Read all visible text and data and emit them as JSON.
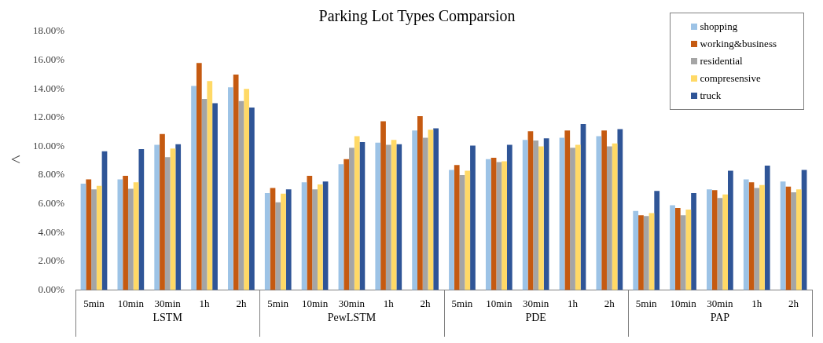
{
  "chart_data": {
    "type": "bar",
    "title": "Parking Lot Types Comparsion",
    "ylabel": "<",
    "categories": [
      "5min",
      "10min",
      "30min",
      "1h",
      "2h",
      "5min",
      "10min",
      "30min",
      "1h",
      "2h",
      "5min",
      "10min",
      "30min",
      "1h",
      "2h",
      "5min",
      "10min",
      "30min",
      "1h",
      "2h"
    ],
    "annotations": [
      "LSTM",
      "PewLSTM",
      "PDE",
      "PAP"
    ],
    "series": [
      {
        "name": "shopping",
        "color": "#9dc3e6",
        "values": [
          7.4,
          7.7,
          10.1,
          14.2,
          14.1,
          6.75,
          7.5,
          8.75,
          10.25,
          11.1,
          8.35,
          9.1,
          10.45,
          10.6,
          10.7,
          5.5,
          5.9,
          7.0,
          7.7,
          7.55
        ]
      },
      {
        "name": "working&business",
        "color": "#c55a11",
        "values": [
          7.7,
          7.95,
          10.85,
          15.8,
          15.0,
          7.1,
          7.95,
          9.1,
          11.75,
          12.1,
          8.7,
          9.2,
          11.05,
          11.1,
          11.1,
          5.2,
          5.7,
          6.95,
          7.5,
          7.2
        ]
      },
      {
        "name": "residential",
        "color": "#a5a5a5",
        "values": [
          7.0,
          7.05,
          9.25,
          13.3,
          13.15,
          6.1,
          7.0,
          9.9,
          10.1,
          10.6,
          8.0,
          8.9,
          10.4,
          9.9,
          10.0,
          5.15,
          5.2,
          6.4,
          7.1,
          6.8
        ]
      },
      {
        "name": "compresensive",
        "color": "#ffd966",
        "values": [
          7.25,
          7.5,
          9.85,
          14.55,
          14.0,
          6.7,
          7.35,
          10.7,
          10.45,
          11.15,
          8.3,
          8.95,
          10.0,
          10.1,
          10.2,
          5.35,
          5.6,
          6.65,
          7.3,
          7.0
        ]
      },
      {
        "name": "truck",
        "color": "#2f5597",
        "values": [
          9.65,
          9.8,
          10.15,
          13.0,
          12.7,
          7.0,
          7.55,
          10.3,
          10.15,
          11.25,
          10.05,
          10.1,
          10.55,
          11.55,
          11.2,
          6.9,
          6.75,
          8.3,
          8.65,
          8.35
        ]
      }
    ],
    "ylim": [
      0,
      18
    ],
    "yticks": [
      {
        "value": 0,
        "label": "0.00%"
      },
      {
        "value": 2,
        "label": "2.00%"
      },
      {
        "value": 4,
        "label": "4.00%"
      },
      {
        "value": 6,
        "label": "6.00%"
      },
      {
        "value": 8,
        "label": "8.00%"
      },
      {
        "value": 10,
        "label": "10.00%"
      },
      {
        "value": 12,
        "label": "12.00%"
      },
      {
        "value": 14,
        "label": "14.00%"
      },
      {
        "value": 16,
        "label": "16.00%"
      },
      {
        "value": 18,
        "label": "18.00%"
      }
    ],
    "grid": false,
    "legend": "top right"
  }
}
